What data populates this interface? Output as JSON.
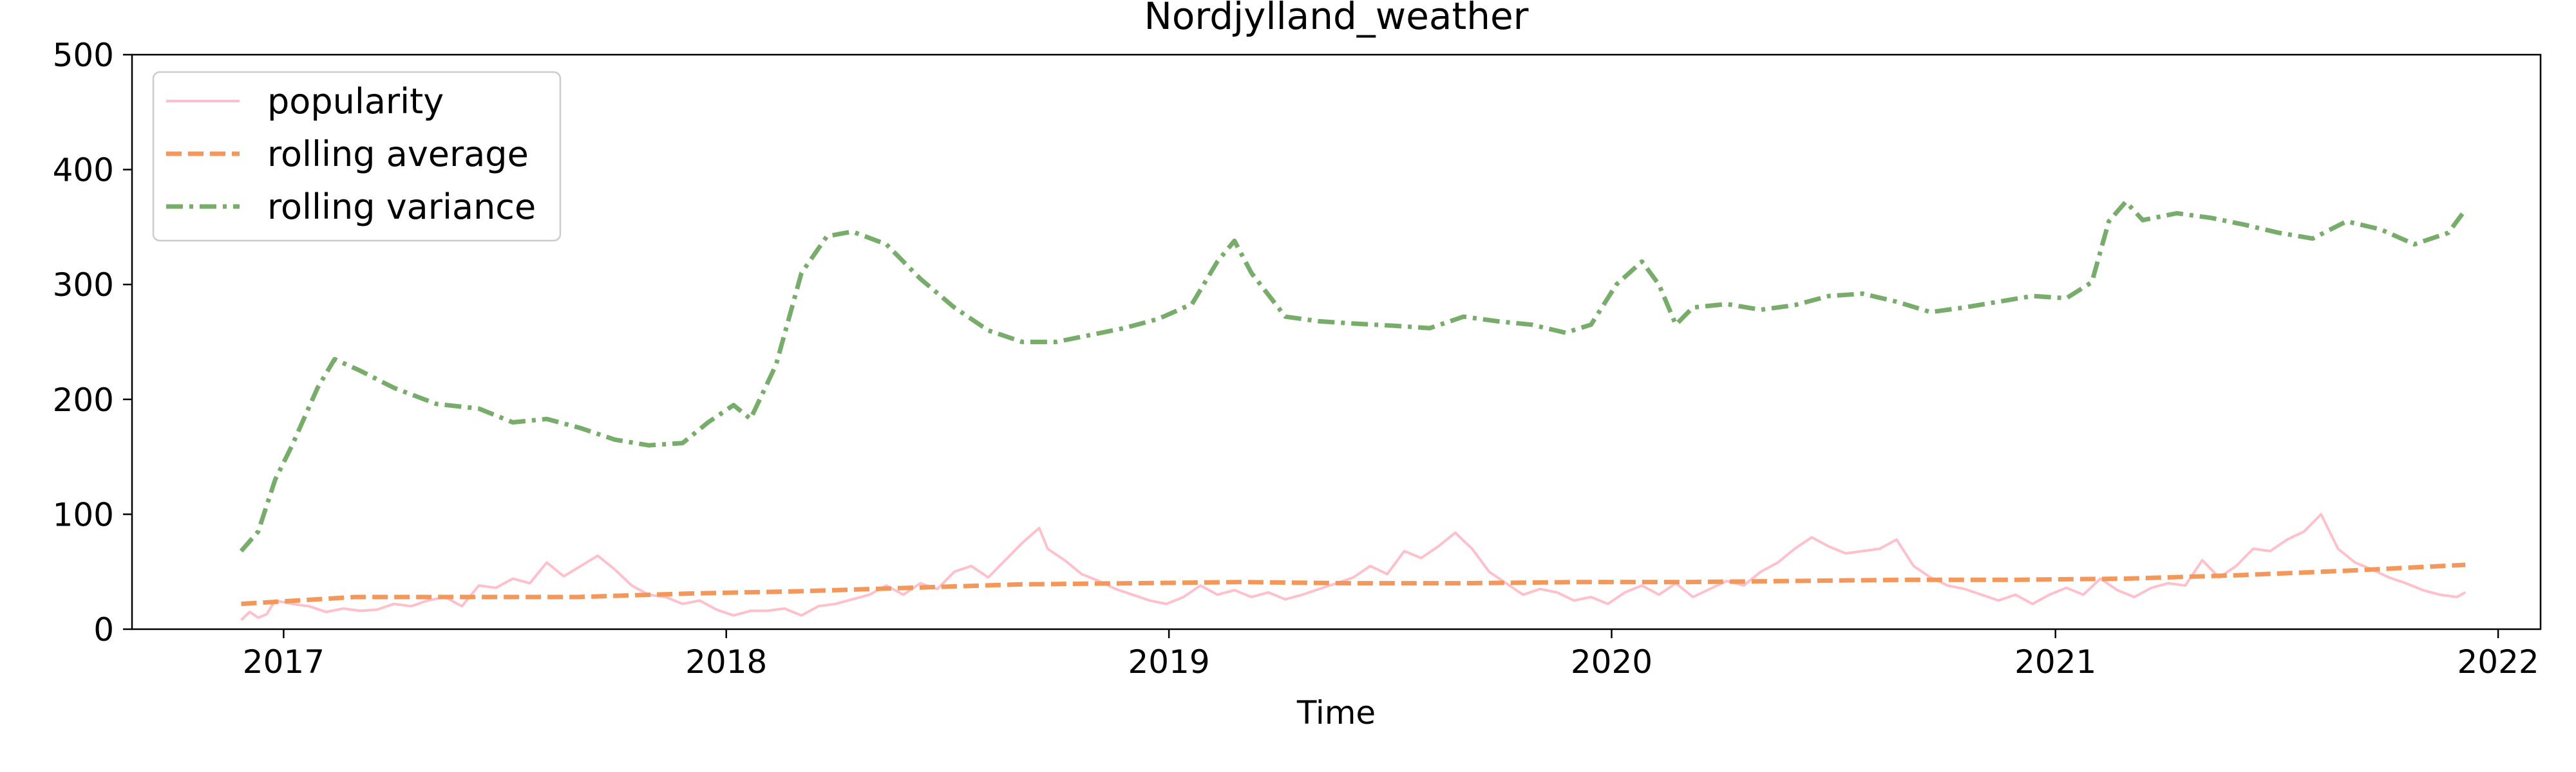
{
  "chart_data": {
    "type": "line",
    "title": "Nordjylland_weather",
    "xlabel": "Time",
    "ylabel": "",
    "xlim": [
      "2016-08-29",
      "2022-02-05"
    ],
    "ylim": [
      0,
      500
    ],
    "xticks": [
      "2017-01-01",
      "2018-01-01",
      "2019-01-01",
      "2020-01-01",
      "2021-01-01",
      "2022-01-01"
    ],
    "xtick_labels": [
      "2017",
      "2018",
      "2019",
      "2020",
      "2021",
      "2022"
    ],
    "yticks": [
      0,
      100,
      200,
      300,
      400,
      500
    ],
    "ytick_labels": [
      "0",
      "100",
      "200",
      "300",
      "400",
      "500"
    ],
    "grid": false,
    "legend_position": "top-left",
    "series": [
      {
        "name": "popularity",
        "color": "#ffc0cb",
        "style": "solid",
        "points": [
          [
            "2016-11-27",
            8
          ],
          [
            "2016-12-04",
            15
          ],
          [
            "2016-12-11",
            10
          ],
          [
            "2016-12-18",
            13
          ],
          [
            "2016-12-25",
            25
          ],
          [
            "2017-01-08",
            22
          ],
          [
            "2017-01-22",
            20
          ],
          [
            "2017-02-05",
            15
          ],
          [
            "2017-02-19",
            18
          ],
          [
            "2017-03-05",
            16
          ],
          [
            "2017-03-19",
            17
          ],
          [
            "2017-04-02",
            22
          ],
          [
            "2017-04-16",
            20
          ],
          [
            "2017-04-30",
            25
          ],
          [
            "2017-05-14",
            28
          ],
          [
            "2017-05-28",
            20
          ],
          [
            "2017-06-11",
            38
          ],
          [
            "2017-06-25",
            36
          ],
          [
            "2017-07-09",
            44
          ],
          [
            "2017-07-23",
            40
          ],
          [
            "2017-08-06",
            58
          ],
          [
            "2017-08-20",
            46
          ],
          [
            "2017-09-03",
            55
          ],
          [
            "2017-09-17",
            64
          ],
          [
            "2017-10-01",
            52
          ],
          [
            "2017-10-15",
            38
          ],
          [
            "2017-10-29",
            30
          ],
          [
            "2017-11-12",
            28
          ],
          [
            "2017-11-26",
            22
          ],
          [
            "2017-12-10",
            25
          ],
          [
            "2017-12-24",
            17
          ],
          [
            "2018-01-07",
            12
          ],
          [
            "2018-01-21",
            16
          ],
          [
            "2018-02-04",
            16
          ],
          [
            "2018-02-18",
            18
          ],
          [
            "2018-03-04",
            12
          ],
          [
            "2018-03-18",
            20
          ],
          [
            "2018-04-01",
            22
          ],
          [
            "2018-04-15",
            26
          ],
          [
            "2018-04-29",
            30
          ],
          [
            "2018-05-13",
            38
          ],
          [
            "2018-05-27",
            30
          ],
          [
            "2018-06-10",
            40
          ],
          [
            "2018-06-24",
            35
          ],
          [
            "2018-07-08",
            50
          ],
          [
            "2018-07-22",
            55
          ],
          [
            "2018-08-05",
            45
          ],
          [
            "2018-08-19",
            60
          ],
          [
            "2018-09-02",
            75
          ],
          [
            "2018-09-16",
            88
          ],
          [
            "2018-09-23",
            70
          ],
          [
            "2018-10-07",
            60
          ],
          [
            "2018-10-21",
            48
          ],
          [
            "2018-11-04",
            42
          ],
          [
            "2018-11-18",
            35
          ],
          [
            "2018-12-02",
            30
          ],
          [
            "2018-12-16",
            25
          ],
          [
            "2018-12-30",
            22
          ],
          [
            "2019-01-13",
            28
          ],
          [
            "2019-01-27",
            38
          ],
          [
            "2019-02-10",
            30
          ],
          [
            "2019-02-24",
            34
          ],
          [
            "2019-03-10",
            28
          ],
          [
            "2019-03-24",
            32
          ],
          [
            "2019-04-07",
            26
          ],
          [
            "2019-04-21",
            30
          ],
          [
            "2019-05-05",
            35
          ],
          [
            "2019-05-19",
            40
          ],
          [
            "2019-06-02",
            45
          ],
          [
            "2019-06-16",
            55
          ],
          [
            "2019-06-30",
            48
          ],
          [
            "2019-07-14",
            68
          ],
          [
            "2019-07-28",
            62
          ],
          [
            "2019-08-11",
            72
          ],
          [
            "2019-08-25",
            84
          ],
          [
            "2019-09-08",
            70
          ],
          [
            "2019-09-22",
            50
          ],
          [
            "2019-10-06",
            40
          ],
          [
            "2019-10-20",
            30
          ],
          [
            "2019-11-03",
            35
          ],
          [
            "2019-11-17",
            32
          ],
          [
            "2019-12-01",
            25
          ],
          [
            "2019-12-15",
            28
          ],
          [
            "2019-12-29",
            22
          ],
          [
            "2020-01-12",
            32
          ],
          [
            "2020-01-26",
            38
          ],
          [
            "2020-02-09",
            30
          ],
          [
            "2020-02-23",
            40
          ],
          [
            "2020-03-08",
            28
          ],
          [
            "2020-03-22",
            35
          ],
          [
            "2020-04-05",
            42
          ],
          [
            "2020-04-19",
            38
          ],
          [
            "2020-05-03",
            50
          ],
          [
            "2020-05-17",
            58
          ],
          [
            "2020-05-31",
            70
          ],
          [
            "2020-06-14",
            80
          ],
          [
            "2020-06-28",
            72
          ],
          [
            "2020-07-12",
            66
          ],
          [
            "2020-07-26",
            68
          ],
          [
            "2020-08-09",
            70
          ],
          [
            "2020-08-23",
            78
          ],
          [
            "2020-09-06",
            55
          ],
          [
            "2020-09-20",
            45
          ],
          [
            "2020-10-04",
            38
          ],
          [
            "2020-10-18",
            35
          ],
          [
            "2020-11-01",
            30
          ],
          [
            "2020-11-15",
            25
          ],
          [
            "2020-11-29",
            30
          ],
          [
            "2020-12-13",
            22
          ],
          [
            "2020-12-27",
            30
          ],
          [
            "2021-01-10",
            36
          ],
          [
            "2021-01-24",
            30
          ],
          [
            "2021-02-07",
            44
          ],
          [
            "2021-02-21",
            34
          ],
          [
            "2021-03-07",
            28
          ],
          [
            "2021-03-21",
            36
          ],
          [
            "2021-04-04",
            40
          ],
          [
            "2021-04-18",
            38
          ],
          [
            "2021-05-02",
            60
          ],
          [
            "2021-05-16",
            45
          ],
          [
            "2021-05-30",
            55
          ],
          [
            "2021-06-13",
            70
          ],
          [
            "2021-06-27",
            68
          ],
          [
            "2021-07-11",
            78
          ],
          [
            "2021-07-25",
            85
          ],
          [
            "2021-08-08",
            100
          ],
          [
            "2021-08-22",
            70
          ],
          [
            "2021-09-05",
            58
          ],
          [
            "2021-09-19",
            52
          ],
          [
            "2021-10-03",
            45
          ],
          [
            "2021-10-17",
            40
          ],
          [
            "2021-10-31",
            34
          ],
          [
            "2021-11-14",
            30
          ],
          [
            "2021-11-28",
            28
          ],
          [
            "2021-12-05",
            32
          ]
        ]
      },
      {
        "name": "rolling average",
        "color": "#f4975a",
        "style": "dashed",
        "points": [
          [
            "2016-11-27",
            22
          ],
          [
            "2017-03-01",
            28
          ],
          [
            "2017-06-01",
            28
          ],
          [
            "2017-09-01",
            28
          ],
          [
            "2017-12-01",
            31
          ],
          [
            "2018-03-01",
            33
          ],
          [
            "2018-06-01",
            36
          ],
          [
            "2018-09-01",
            39
          ],
          [
            "2018-12-01",
            40
          ],
          [
            "2019-03-01",
            41
          ],
          [
            "2019-06-01",
            40
          ],
          [
            "2019-09-01",
            40
          ],
          [
            "2019-12-01",
            41
          ],
          [
            "2020-03-01",
            41
          ],
          [
            "2020-06-01",
            42
          ],
          [
            "2020-09-01",
            43
          ],
          [
            "2020-12-01",
            43
          ],
          [
            "2021-03-01",
            44
          ],
          [
            "2021-06-01",
            47
          ],
          [
            "2021-09-01",
            51
          ],
          [
            "2021-12-05",
            56
          ]
        ]
      },
      {
        "name": "rolling variance",
        "color": "#77ac6a",
        "style": "dashdot",
        "points": [
          [
            "2016-11-27",
            68
          ],
          [
            "2016-12-11",
            85
          ],
          [
            "2016-12-25",
            130
          ],
          [
            "2017-01-08",
            160
          ],
          [
            "2017-01-29",
            210
          ],
          [
            "2017-02-12",
            235
          ],
          [
            "2017-03-05",
            225
          ],
          [
            "2017-04-02",
            210
          ],
          [
            "2017-05-07",
            196
          ],
          [
            "2017-06-11",
            192
          ],
          [
            "2017-07-09",
            180
          ],
          [
            "2017-08-06",
            183
          ],
          [
            "2017-09-03",
            175
          ],
          [
            "2017-10-01",
            165
          ],
          [
            "2017-10-29",
            160
          ],
          [
            "2017-11-26",
            162
          ],
          [
            "2017-12-17",
            180
          ],
          [
            "2018-01-07",
            195
          ],
          [
            "2018-01-21",
            183
          ],
          [
            "2018-02-11",
            230
          ],
          [
            "2018-03-04",
            310
          ],
          [
            "2018-03-25",
            342
          ],
          [
            "2018-04-15",
            346
          ],
          [
            "2018-05-13",
            335
          ],
          [
            "2018-06-10",
            305
          ],
          [
            "2018-07-08",
            280
          ],
          [
            "2018-08-05",
            260
          ],
          [
            "2018-09-02",
            250
          ],
          [
            "2018-09-30",
            250
          ],
          [
            "2018-10-28",
            256
          ],
          [
            "2018-11-25",
            262
          ],
          [
            "2018-12-23",
            270
          ],
          [
            "2019-01-20",
            283
          ],
          [
            "2019-02-10",
            320
          ],
          [
            "2019-02-24",
            338
          ],
          [
            "2019-03-10",
            310
          ],
          [
            "2019-04-07",
            272
          ],
          [
            "2019-05-05",
            268
          ],
          [
            "2019-06-02",
            266
          ],
          [
            "2019-07-07",
            264
          ],
          [
            "2019-08-04",
            262
          ],
          [
            "2019-09-01",
            272
          ],
          [
            "2019-09-29",
            268
          ],
          [
            "2019-10-27",
            265
          ],
          [
            "2019-11-24",
            258
          ],
          [
            "2019-12-15",
            265
          ],
          [
            "2020-01-05",
            300
          ],
          [
            "2020-01-26",
            320
          ],
          [
            "2020-02-09",
            300
          ],
          [
            "2020-02-23",
            265
          ],
          [
            "2020-03-08",
            280
          ],
          [
            "2020-04-05",
            283
          ],
          [
            "2020-05-03",
            278
          ],
          [
            "2020-05-31",
            282
          ],
          [
            "2020-06-28",
            290
          ],
          [
            "2020-07-26",
            292
          ],
          [
            "2020-08-23",
            285
          ],
          [
            "2020-09-20",
            276
          ],
          [
            "2020-10-18",
            280
          ],
          [
            "2020-11-15",
            285
          ],
          [
            "2020-12-13",
            290
          ],
          [
            "2021-01-10",
            288
          ],
          [
            "2021-01-31",
            302
          ],
          [
            "2021-02-14",
            355
          ],
          [
            "2021-02-28",
            372
          ],
          [
            "2021-03-14",
            356
          ],
          [
            "2021-04-11",
            362
          ],
          [
            "2021-05-09",
            358
          ],
          [
            "2021-06-06",
            352
          ],
          [
            "2021-07-04",
            345
          ],
          [
            "2021-08-01",
            340
          ],
          [
            "2021-08-29",
            355
          ],
          [
            "2021-09-26",
            348
          ],
          [
            "2021-10-24",
            335
          ],
          [
            "2021-11-21",
            345
          ],
          [
            "2021-12-05",
            365
          ]
        ]
      }
    ]
  }
}
